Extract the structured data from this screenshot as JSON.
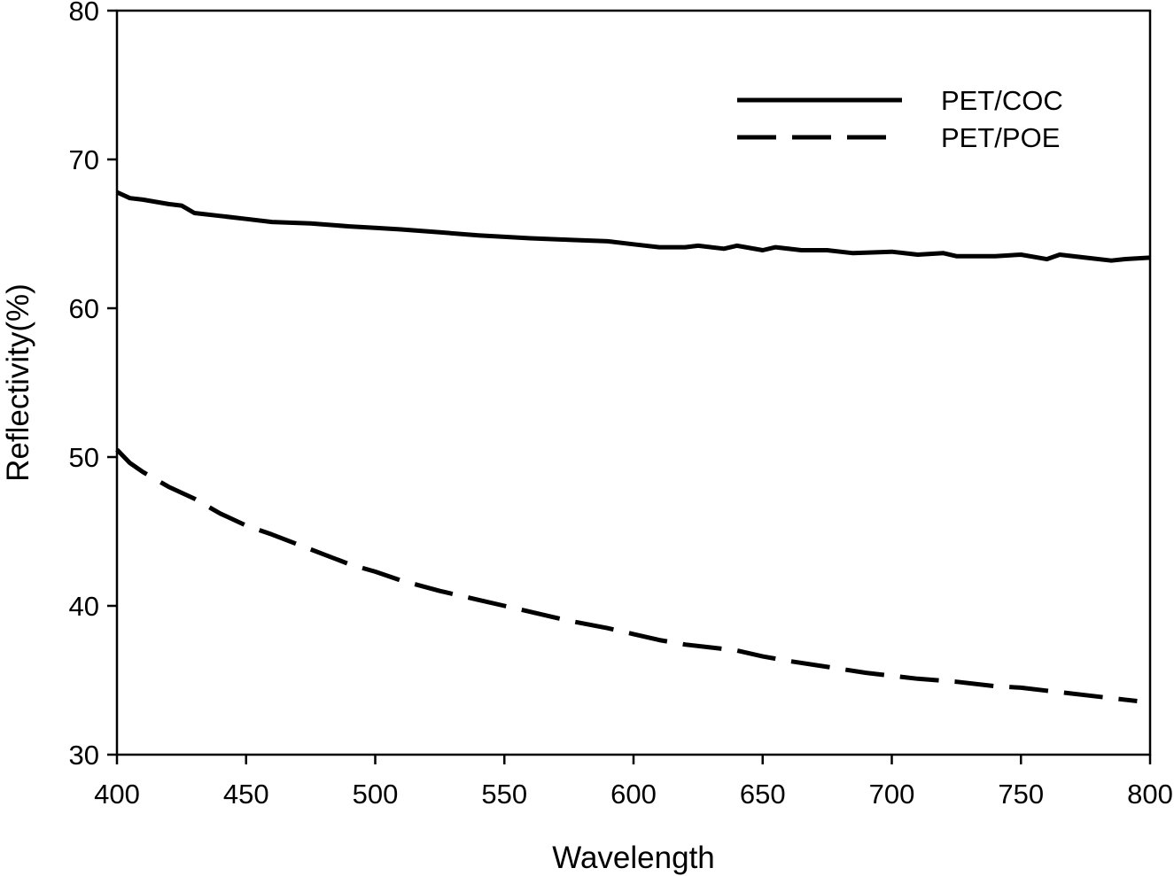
{
  "chart_data": {
    "type": "line",
    "title": "",
    "xlabel": "Wavelength",
    "ylabel": "Reflectivity(%)",
    "xlim": [
      400,
      800
    ],
    "ylim": [
      30,
      80
    ],
    "xticks": [
      400,
      450,
      500,
      550,
      600,
      650,
      700,
      750,
      800
    ],
    "yticks": [
      30,
      40,
      50,
      60,
      70,
      80
    ],
    "grid": false,
    "legend_position": "top-right",
    "series": [
      {
        "name": "PET/COC",
        "style": "solid",
        "color": "#000000",
        "x": [
          400,
          405,
          410,
          420,
          425,
          430,
          440,
          450,
          460,
          475,
          490,
          500,
          510,
          525,
          540,
          550,
          560,
          575,
          590,
          600,
          610,
          620,
          625,
          635,
          640,
          650,
          655,
          665,
          675,
          685,
          700,
          710,
          720,
          725,
          740,
          750,
          760,
          765,
          775,
          785,
          790,
          800
        ],
        "values": [
          67.8,
          67.4,
          67.3,
          67.0,
          66.9,
          66.4,
          66.2,
          66.0,
          65.8,
          65.7,
          65.5,
          65.4,
          65.3,
          65.1,
          64.9,
          64.8,
          64.7,
          64.6,
          64.5,
          64.3,
          64.1,
          64.1,
          64.2,
          64.0,
          64.2,
          63.9,
          64.1,
          63.9,
          63.9,
          63.7,
          63.8,
          63.6,
          63.7,
          63.5,
          63.5,
          63.6,
          63.3,
          63.6,
          63.4,
          63.2,
          63.3,
          63.4
        ]
      },
      {
        "name": "PET/POE",
        "style": "dashed",
        "color": "#000000",
        "x": [
          400,
          405,
          410,
          420,
          430,
          440,
          450,
          460,
          475,
          490,
          500,
          510,
          525,
          540,
          550,
          560,
          575,
          590,
          600,
          610,
          620,
          630,
          640,
          650,
          660,
          675,
          690,
          700,
          710,
          725,
          740,
          750,
          760,
          775,
          785,
          795
        ],
        "values": [
          50.5,
          49.6,
          49.0,
          48.0,
          47.2,
          46.2,
          45.4,
          44.8,
          43.8,
          42.8,
          42.3,
          41.7,
          41.0,
          40.4,
          40.0,
          39.6,
          39.0,
          38.5,
          38.1,
          37.7,
          37.4,
          37.2,
          37.0,
          36.6,
          36.3,
          35.9,
          35.5,
          35.3,
          35.1,
          34.9,
          34.6,
          34.5,
          34.3,
          34.0,
          33.8,
          33.6
        ]
      }
    ]
  }
}
